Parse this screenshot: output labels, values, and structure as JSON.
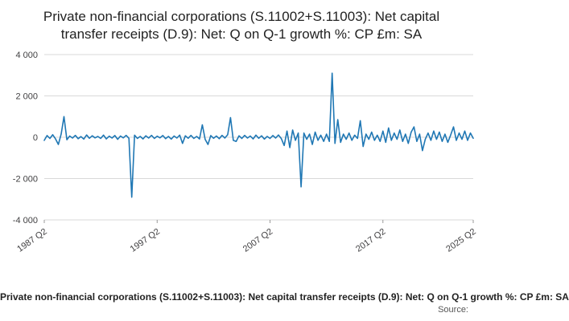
{
  "title": "Private non-financial corporations (S.11002+S.11003): Net capital transfer receipts (D.9): Net: Q on Q-1 growth %: CP £m: SA",
  "footer": {
    "series_label": "Private non-financial corporations (S.11002+S.11003): Net capital transfer receipts (D.9): Net: Q on Q-1 growth %: CP £m: SA",
    "source_label": "Source:"
  },
  "chart_data": {
    "type": "line",
    "title": "Private non-financial corporations (S.11002+S.11003): Net capital transfer receipts (D.9): Net: Q on Q-1 growth %: CP £m: SA",
    "frequency": "quarterly",
    "x_start": "1987 Q2",
    "x_end": "2025 Q2",
    "x_tick_labels": [
      "1987 Q2",
      "1997 Q2",
      "2007 Q2",
      "2017 Q2",
      "2025 Q2"
    ],
    "x_tick_indices": [
      0,
      40,
      80,
      120,
      152
    ],
    "y_ticks": [
      4000,
      2000,
      0,
      -2000,
      -4000
    ],
    "y_tick_labels": [
      "4 000",
      "2 000",
      "0",
      "-2 000",
      "-4 000"
    ],
    "ylim": [
      -4000,
      4000
    ],
    "grid": true,
    "legend": "none",
    "line_color": "#1f77b4",
    "grid_color": "#d9d9d9",
    "axis_text_color": "#414042",
    "values": [
      -150,
      80,
      -60,
      120,
      -80,
      -350,
      150,
      1000,
      -120,
      60,
      -40,
      90,
      -70,
      30,
      -90,
      110,
      -50,
      70,
      -30,
      40,
      -60,
      100,
      -80,
      50,
      -40,
      80,
      -100,
      60,
      -30,
      90,
      -50,
      -2900,
      100,
      -60,
      40,
      -80,
      70,
      -40,
      90,
      -60,
      50,
      -30,
      80,
      -70,
      40,
      -90,
      60,
      -40,
      100,
      -300,
      70,
      -50,
      90,
      -60,
      40,
      -80,
      600,
      -100,
      -350,
      80,
      -50,
      60,
      -70,
      90,
      -40,
      120,
      950,
      -150,
      -200,
      70,
      -60,
      90,
      -40,
      60,
      -80,
      100,
      -50,
      70,
      -90,
      40,
      -60,
      80,
      -40,
      110,
      -70,
      -400,
      300,
      -500,
      350,
      -150,
      200,
      -2400,
      200,
      -100,
      150,
      -350,
      250,
      -150,
      100,
      -200,
      150,
      -200,
      3100,
      -300,
      850,
      -250,
      150,
      -100,
      200,
      -150,
      100,
      -60,
      800,
      -450,
      150,
      -100,
      250,
      -150,
      100,
      -200,
      300,
      -250,
      450,
      -150,
      200,
      -100,
      350,
      -200,
      150,
      -300,
      250,
      500,
      -200,
      150,
      -650,
      -100,
      200,
      -150,
      300,
      -100,
      250,
      -200,
      150,
      -250,
      100,
      500,
      -150,
      200,
      -100,
      300,
      -150,
      200,
      -50
    ]
  }
}
